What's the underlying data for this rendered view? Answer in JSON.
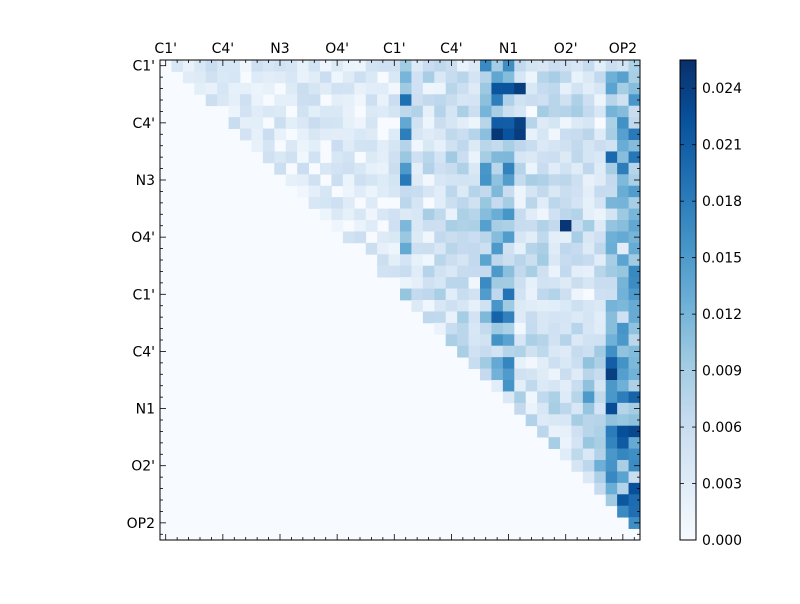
{
  "chart_data": {
    "type": "heatmap",
    "colormap": "Blues",
    "matrix_size": 42,
    "shape": "upper-triangular",
    "tick_labels_top": [
      "C1'",
      "C4'",
      "N3",
      "O4'",
      "C1'",
      "C4'",
      "N1",
      "O2'",
      "OP2"
    ],
    "tick_labels_left": [
      "C1'",
      "C4'",
      "N3",
      "O4'",
      "C1'",
      "C4'",
      "N1",
      "O2'",
      "OP2"
    ],
    "colorbar": {
      "vmin": 0.0,
      "vmax": 0.0255,
      "ticks": [
        "0.000",
        "0.003",
        "0.006",
        "0.009",
        "0.012",
        "0.015",
        "0.018",
        "0.021",
        "0.024"
      ],
      "tick_values": [
        0.0,
        0.003,
        0.006,
        0.009,
        0.012,
        0.015,
        0.018,
        0.021,
        0.024
      ]
    },
    "values": {
      "max_cell": 0.025,
      "strong_columns": [
        21,
        28,
        29,
        30,
        39,
        40,
        41
      ]
    }
  }
}
